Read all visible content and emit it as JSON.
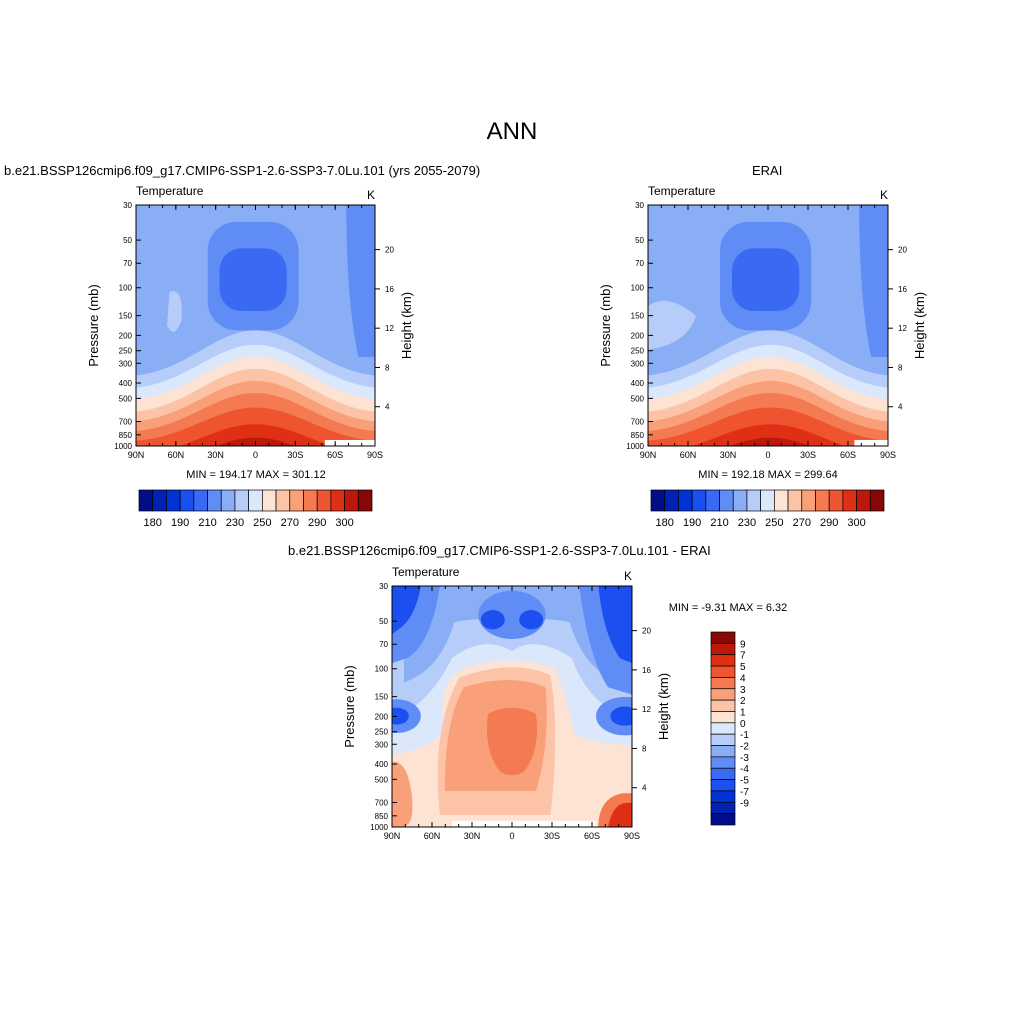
{
  "page": {
    "title": "ANN"
  },
  "palette": {
    "abs_colors": [
      "#000e8a",
      "#0021b2",
      "#0033d6",
      "#1c4ff0",
      "#3a6af4",
      "#5f8cf5",
      "#8aaef6",
      "#b5cdf8",
      "#dbe8fb",
      "#fde3d3",
      "#fcc3a6",
      "#f9a07a",
      "#f47a52",
      "#ee5430",
      "#df3016",
      "#bc180b",
      "#870804"
    ],
    "abs_ticks": [
      "180",
      "190",
      "210",
      "230",
      "250",
      "270",
      "290",
      "300"
    ],
    "diff_colors": [
      "#000e8a",
      "#0021b2",
      "#0033d6",
      "#1c4ff0",
      "#3a6af4",
      "#5f8cf5",
      "#8aaef6",
      "#b5cdf8",
      "#dbe8fb",
      "#fde3d3",
      "#fcc3a6",
      "#f9a07a",
      "#f47a52",
      "#ee5430",
      "#df3016",
      "#bc180b",
      "#870804"
    ],
    "diff_ticks": [
      "9",
      "7",
      "5",
      "4",
      "3",
      "2",
      "1",
      "0",
      "-1",
      "-2",
      "-3",
      "-4",
      "-5",
      "-7",
      "-9"
    ]
  },
  "axes": {
    "xticks": [
      "90N",
      "60N",
      "30N",
      "0",
      "30S",
      "60S",
      "90S"
    ],
    "pressure_ticks": [
      "30",
      "50",
      "70",
      "100",
      "150",
      "200",
      "250",
      "300",
      "400",
      "500",
      "700",
      "850",
      "1000"
    ],
    "height_ticks": [
      "20",
      "16",
      "12",
      "8",
      "4"
    ],
    "ylabel": "Pressure (mb)",
    "ylabel_right": "Height (km)",
    "left_string": "Temperature",
    "right_string": "K"
  },
  "panels": {
    "model": {
      "title": "b.e21.BSSP126cmip6.f09_g17.CMIP6-SSP1-2.6-SSP3-7.0Lu.101 (yrs 2055-2079)",
      "stats": "MIN = 194.17  MAX = 301.12"
    },
    "obs": {
      "title": "ERAI",
      "stats": "MIN = 192.18  MAX = 299.64"
    },
    "diff": {
      "title": "b.e21.BSSP126cmip6.f09_g17.CMIP6-SSP1-2.6-SSP3-7.0Lu.101 - ERAI",
      "stats": "MIN =  -9.31  MAX =   6.32"
    }
  },
  "chart_data": [
    {
      "type": "heatmap",
      "title": "b.e21.BSSP126cmip6.f09_g17.CMIP6-SSP1-2.6-SSP3-7.0Lu.101 (yrs 2055-2079)",
      "variable": "Temperature",
      "units": "K",
      "xlabel": "",
      "ylabel": "Pressure (mb)",
      "ylabel_right": "Height (km)",
      "x_range": [
        "90N",
        "90S"
      ],
      "y_range": [
        30,
        1000
      ],
      "min": 194.17,
      "max": 301.12,
      "colorbar_ticks": [
        180,
        190,
        210,
        230,
        250,
        270,
        290,
        300
      ]
    },
    {
      "type": "heatmap",
      "title": "ERAI",
      "variable": "Temperature",
      "units": "K",
      "xlabel": "",
      "ylabel": "Pressure (mb)",
      "ylabel_right": "Height (km)",
      "x_range": [
        "90N",
        "90S"
      ],
      "y_range": [
        30,
        1000
      ],
      "min": 192.18,
      "max": 299.64,
      "colorbar_ticks": [
        180,
        190,
        210,
        230,
        250,
        270,
        290,
        300
      ]
    },
    {
      "type": "heatmap",
      "title": "b.e21.BSSP126cmip6.f09_g17.CMIP6-SSP1-2.6-SSP3-7.0Lu.101 - ERAI",
      "variable": "Temperature",
      "units": "K",
      "xlabel": "",
      "ylabel": "Pressure (mb)",
      "ylabel_right": "Height (km)",
      "x_range": [
        "90N",
        "90S"
      ],
      "y_range": [
        30,
        1000
      ],
      "min": -9.31,
      "max": 6.32,
      "colorbar_ticks": [
        9,
        7,
        5,
        4,
        3,
        2,
        1,
        0,
        -1,
        -2,
        -3,
        -4,
        -5,
        -7,
        -9
      ]
    }
  ]
}
